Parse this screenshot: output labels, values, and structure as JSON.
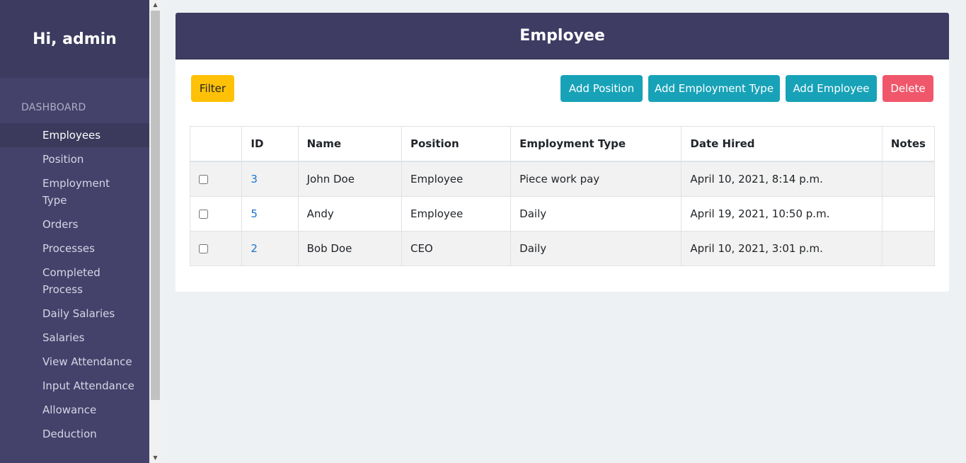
{
  "sidebar": {
    "greeting": "Hi, admin",
    "section": "DASHBOARD",
    "items": [
      {
        "label": "Employees",
        "active": true
      },
      {
        "label": "Position"
      },
      {
        "label": "Employment Type"
      },
      {
        "label": "Orders"
      },
      {
        "label": "Processes"
      },
      {
        "label": "Completed Process"
      },
      {
        "label": "Daily Salaries"
      },
      {
        "label": "Salaries"
      },
      {
        "label": "View Attendance"
      },
      {
        "label": "Input Attendance"
      },
      {
        "label": "Allowance"
      },
      {
        "label": "Deduction"
      }
    ]
  },
  "page": {
    "title": "Employee",
    "buttons": {
      "filter": "Filter",
      "add_position": "Add Position",
      "add_employment_type": "Add Employment Type",
      "add_employee": "Add Employee",
      "delete": "Delete"
    }
  },
  "table": {
    "headers": [
      "",
      "ID",
      "Name",
      "Position",
      "Employment Type",
      "Date Hired",
      "Notes"
    ],
    "rows": [
      {
        "id": "3",
        "name": "John Doe",
        "position": "Employee",
        "employment_type": "Piece work pay",
        "date_hired": "April 10, 2021, 8:14 p.m.",
        "notes": ""
      },
      {
        "id": "5",
        "name": "Andy",
        "position": "Employee",
        "employment_type": "Daily",
        "date_hired": "April 19, 2021, 10:50 p.m.",
        "notes": ""
      },
      {
        "id": "2",
        "name": "Bob Doe",
        "position": "CEO",
        "employment_type": "Daily",
        "date_hired": "April 10, 2021, 3:01 p.m.",
        "notes": ""
      }
    ]
  },
  "colors": {
    "sidebar_bg": "#44426a",
    "header_bg": "#3e3c63",
    "info": "#17a2b8",
    "warning": "#ffc107",
    "danger": "#f0576b",
    "link": "#1a73c9"
  }
}
